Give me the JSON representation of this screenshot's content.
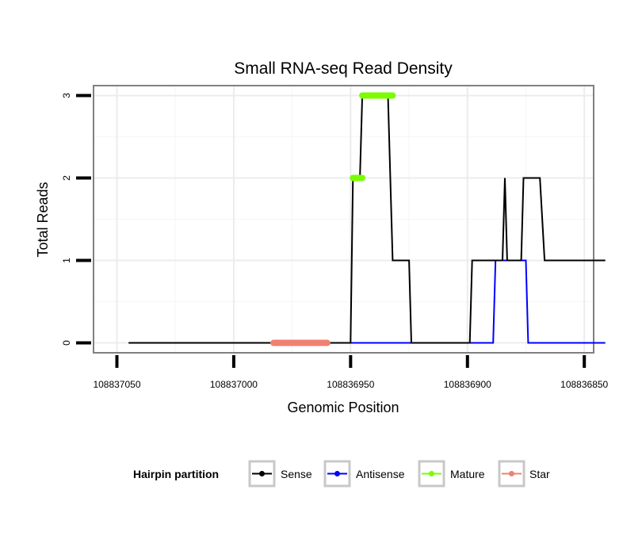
{
  "chart_data": {
    "type": "line",
    "title": "Small RNA-seq Read Density",
    "xlabel": "Genomic Position",
    "ylabel": "Total Reads",
    "x_reversed": true,
    "xlim": [
      108837060,
      108836846
    ],
    "ylim": [
      -0.12,
      3.12
    ],
    "x_ticks": [
      108837050,
      108837000,
      108836950,
      108836900,
      108836850
    ],
    "x_tick_labels": [
      "108837050",
      "108837000",
      "108836950",
      "108836900",
      "108836850"
    ],
    "y_ticks": [
      0,
      1,
      2,
      3
    ],
    "y_tick_labels": [
      "0",
      "1",
      "2",
      "3"
    ],
    "grid": true,
    "legend": {
      "title": "Hairpin partition",
      "position": "bottom",
      "entries": [
        "Sense",
        "Antisense",
        "Mature",
        "Star"
      ]
    },
    "series": [
      {
        "name": "Sense",
        "color": "#000000",
        "x": [
          108837045,
          108836950,
          108836949,
          108836946,
          108836945,
          108836934,
          108836932,
          108836925,
          108836924,
          108836899,
          108836898,
          108836885,
          108836884,
          108836883,
          108836881,
          108836877,
          108836876,
          108836869,
          108836867,
          108836841
        ],
        "y": [
          0,
          0,
          2,
          2,
          3,
          3,
          1,
          1,
          0,
          0,
          1,
          1,
          2,
          1,
          1,
          1,
          2,
          2,
          1,
          1
        ]
      },
      {
        "name": "Antisense",
        "color": "#0000ff",
        "x": [
          108836950,
          108836889,
          108836888,
          108836875,
          108836874,
          108836841
        ],
        "y": [
          0,
          0,
          1,
          1,
          0,
          0
        ]
      },
      {
        "name": "Mature",
        "color": "#7cfc00",
        "segments": [
          {
            "x": [
              108836949,
              108836945
            ],
            "y": [
              2,
              2
            ]
          },
          {
            "x": [
              108836945,
              108836932
            ],
            "y": [
              3,
              3
            ]
          }
        ]
      },
      {
        "name": "Star",
        "color": "#f08070",
        "segments": [
          {
            "x": [
              108836983,
              108836960
            ],
            "y": [
              0,
              0
            ]
          }
        ]
      }
    ]
  }
}
